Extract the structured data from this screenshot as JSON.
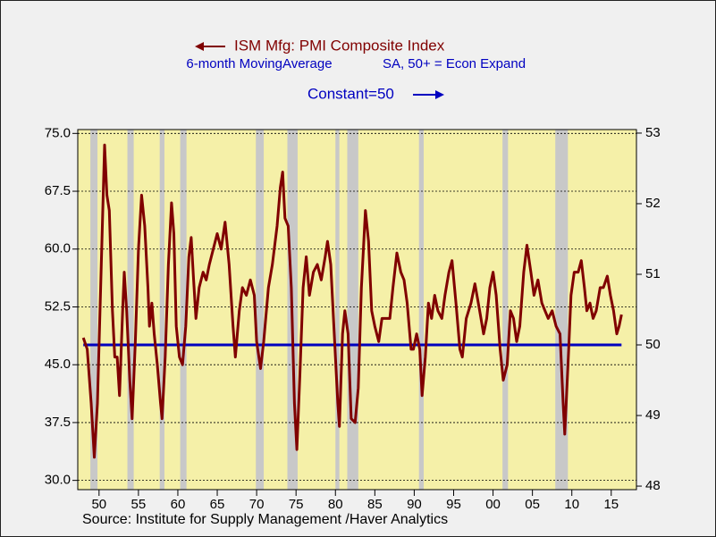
{
  "chart_data": {
    "type": "line",
    "series": [
      {
        "name": "ISM Mfg: PMI Composite Index",
        "color": "#800000",
        "axis": "y",
        "x": [
          1948.0,
          1948.5,
          1949.0,
          1949.4,
          1949.8,
          1950.2,
          1950.7,
          1951.0,
          1951.3,
          1951.7,
          1952.0,
          1952.3,
          1952.6,
          1953.0,
          1953.2,
          1953.5,
          1953.9,
          1954.2,
          1954.6,
          1955.0,
          1955.4,
          1955.8,
          1956.2,
          1956.4,
          1956.7,
          1957.0,
          1957.4,
          1957.8,
          1958.0,
          1958.4,
          1958.8,
          1959.2,
          1959.5,
          1959.8,
          1960.2,
          1960.6,
          1961.0,
          1961.4,
          1961.7,
          1962.0,
          1962.3,
          1962.7,
          1963.2,
          1963.6,
          1964.0,
          1964.5,
          1965.0,
          1965.5,
          1966.0,
          1966.5,
          1967.0,
          1967.3,
          1967.8,
          1968.2,
          1968.7,
          1969.2,
          1969.7,
          1970.0,
          1970.5,
          1970.9,
          1971.5,
          1972.0,
          1972.6,
          1973.0,
          1973.3,
          1973.6,
          1974.0,
          1974.4,
          1974.8,
          1975.1,
          1975.5,
          1975.9,
          1976.3,
          1976.7,
          1977.2,
          1977.7,
          1978.2,
          1978.7,
          1979.0,
          1979.4,
          1979.8,
          1980.3,
          1980.5,
          1980.9,
          1981.2,
          1981.6,
          1982.0,
          1982.5,
          1982.9,
          1983.3,
          1983.8,
          1984.2,
          1984.6,
          1985.0,
          1985.5,
          1985.9,
          1986.4,
          1986.9,
          1987.3,
          1987.8,
          1988.3,
          1988.7,
          1989.1,
          1989.6,
          1989.9,
          1990.3,
          1990.7,
          1991.0,
          1991.4,
          1991.8,
          1992.2,
          1992.6,
          1993.0,
          1993.5,
          1993.9,
          1994.4,
          1994.8,
          1995.3,
          1995.8,
          1996.1,
          1996.6,
          1997.2,
          1997.7,
          1998.3,
          1998.8,
          1999.2,
          1999.6,
          2000.0,
          2000.4,
          2000.9,
          2001.3,
          2001.8,
          2002.2,
          2002.6,
          2003.0,
          2003.4,
          2003.9,
          2004.3,
          2004.8,
          2005.2,
          2005.7,
          2006.2,
          2006.6,
          2007.0,
          2007.5,
          2008.0,
          2008.5,
          2008.9,
          2009.1,
          2009.6,
          2009.9,
          2010.3,
          2010.8,
          2011.2,
          2011.6,
          2011.9,
          2012.3,
          2012.7,
          2013.1,
          2013.6,
          2014.0,
          2014.5,
          2014.9,
          2015.3,
          2015.7,
          2016.0,
          2016.3
        ],
        "values": [
          48.5,
          47,
          40,
          33,
          40,
          55,
          73.5,
          67,
          65,
          52,
          46,
          46,
          41,
          52,
          57,
          52,
          43,
          38,
          48,
          60,
          67,
          63,
          55,
          50,
          53,
          49,
          45,
          40,
          38,
          46,
          58,
          66,
          62,
          50,
          46,
          45,
          50,
          59,
          61.5,
          56,
          51,
          55,
          57,
          56,
          58,
          60,
          62,
          60,
          63.5,
          58,
          50,
          46,
          52,
          55,
          54,
          56,
          54,
          48,
          44.5,
          48,
          55,
          58,
          63,
          68,
          70,
          64,
          63,
          55,
          40,
          34,
          44,
          55,
          59,
          54,
          57,
          58,
          56,
          59,
          61,
          58,
          50,
          40,
          37,
          49,
          52,
          49,
          38,
          37.5,
          42,
          55,
          65,
          61,
          52,
          50,
          48,
          51,
          51,
          51,
          55,
          59.5,
          57,
          56,
          53,
          47,
          47,
          49,
          47,
          41,
          46,
          53,
          51,
          54,
          52,
          51,
          54,
          57,
          58.5,
          53,
          47,
          46,
          51,
          53,
          55.5,
          52,
          49,
          51,
          55,
          57,
          54,
          47,
          43,
          45,
          52,
          51,
          48,
          50,
          57,
          60.5,
          57,
          54,
          56,
          53,
          52,
          51,
          52,
          50,
          49,
          40,
          36,
          47,
          54,
          57,
          57,
          58.5,
          55,
          52,
          53,
          51,
          52,
          55,
          55,
          56.5,
          54,
          52,
          49,
          50,
          51.5
        ]
      },
      {
        "name": "Constant=50",
        "color": "#0000c0",
        "axis": "y2",
        "x": [
          1948.0,
          2016.3
        ],
        "values": [
          50,
          50
        ]
      }
    ],
    "legend_notes": [
      "6-month MovingAverage",
      "SA, 50+ = Econ Expand"
    ],
    "source": "Source:  Institute for Supply Management /Haver Analytics",
    "recessions": [
      [
        1948.9,
        1949.8
      ],
      [
        1953.6,
        1954.4
      ],
      [
        1957.7,
        1958.3
      ],
      [
        1960.3,
        1961.1
      ],
      [
        1969.9,
        1970.9
      ],
      [
        1973.9,
        1975.2
      ],
      [
        1980.0,
        1980.5
      ],
      [
        1981.5,
        1982.9
      ],
      [
        1990.6,
        1991.2
      ],
      [
        2001.2,
        2001.9
      ],
      [
        2007.9,
        2009.5
      ]
    ],
    "xlim": [
      1947.3,
      2018.2
    ],
    "xticks": [
      {
        "value": 1950,
        "label": "50"
      },
      {
        "value": 1955,
        "label": "55"
      },
      {
        "value": 1960,
        "label": "60"
      },
      {
        "value": 1965,
        "label": "65"
      },
      {
        "value": 1970,
        "label": "70"
      },
      {
        "value": 1975,
        "label": "75"
      },
      {
        "value": 1980,
        "label": "80"
      },
      {
        "value": 1985,
        "label": "85"
      },
      {
        "value": 1990,
        "label": "90"
      },
      {
        "value": 1995,
        "label": "95"
      },
      {
        "value": 2000,
        "label": "00"
      },
      {
        "value": 2005,
        "label": "05"
      },
      {
        "value": 2010,
        "label": "10"
      },
      {
        "value": 2015,
        "label": "15"
      }
    ],
    "ylim": [
      28.8,
      75.5
    ],
    "yticks": [
      {
        "value": 30,
        "label": "30.0"
      },
      37.5,
      {
        "value": 45,
        "label": "45.0"
      },
      52.5,
      {
        "value": 60,
        "label": "60.0"
      },
      67.5,
      {
        "value": 75,
        "label": "75.0"
      }
    ],
    "y2lim": [
      47.95,
      53.05
    ],
    "y2ticks": [
      48,
      49,
      50,
      51,
      52,
      53
    ],
    "grid": true
  }
}
